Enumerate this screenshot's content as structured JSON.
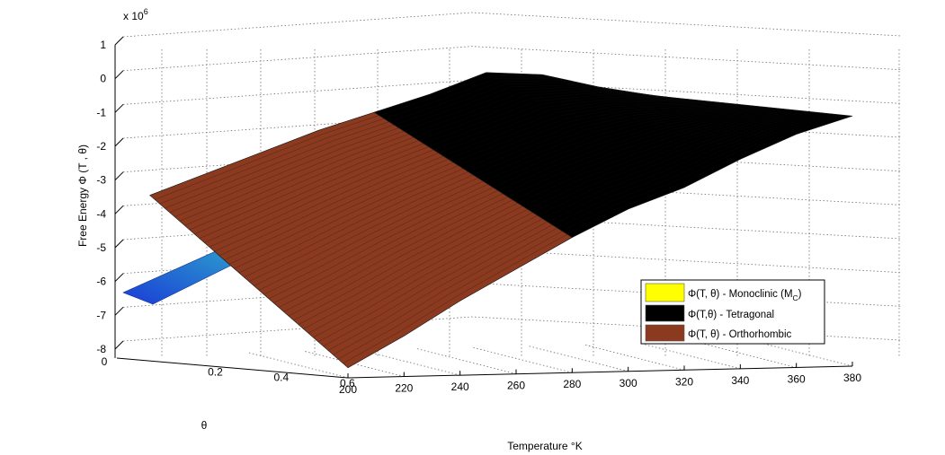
{
  "chart_data": {
    "type": "surface",
    "title": "",
    "zlabel": "Free Energy Φ (T , θ)",
    "xlabel": "Temperature °K",
    "ylabel": "θ",
    "exponent_label": "x 10",
    "exponent_power": "6",
    "z_ticks": [
      "1",
      "0",
      "-1",
      "-2",
      "-3",
      "-4",
      "-5",
      "-6",
      "-7",
      "-8"
    ],
    "z_tick_values": [
      1,
      0,
      -1,
      -2,
      -3,
      -4,
      -5,
      -6,
      -7,
      -8
    ],
    "zlim": [
      -8,
      1
    ],
    "x_ticks": [
      "200",
      "220",
      "240",
      "260",
      "280",
      "300",
      "320",
      "340",
      "360",
      "380"
    ],
    "x_tick_values": [
      200,
      220,
      240,
      260,
      280,
      300,
      320,
      340,
      360,
      380
    ],
    "xlim": [
      195,
      385
    ],
    "y_ticks": [
      "0",
      "0.2",
      "0.4",
      "0.6"
    ],
    "y_tick_values": [
      0,
      0.2,
      0.4,
      0.6
    ],
    "ylim": [
      0,
      0.7
    ],
    "grid": true,
    "legend_position": "lower-right",
    "legend": [
      {
        "label": "Φ(T, θ) - Monoclinic (M",
        "sub": "C",
        "tail": ")",
        "color": "#ffff00"
      },
      {
        "label": "Φ(T,θ) - Tetragonal",
        "sub": "",
        "tail": "",
        "color": "#000000"
      },
      {
        "label": "Φ(T, θ) - Orthorhombic",
        "sub": "",
        "tail": "",
        "color": "#8b3a1f"
      }
    ],
    "series": [
      {
        "name": "Φ(T, θ) - Orthorhombic",
        "color": "#8b3a1f",
        "theta": [
          0.1,
          0.7
        ],
        "T": [
          200,
          220,
          240,
          260,
          280
        ],
        "z_low_theta": [
          -3.1,
          -2.5,
          -1.9,
          -1.3,
          -0.8
        ],
        "z_high_theta": [
          -7.7,
          -6.8,
          -5.8,
          -4.9,
          -4.0
        ]
      },
      {
        "name": "Φ(T,θ) - Tetragonal",
        "color": "#000000",
        "theta": [
          0.1,
          0.7
        ],
        "T": [
          280,
          300,
          320,
          340,
          360,
          380
        ],
        "z_low_theta": [
          -0.8,
          -0.3,
          0.3,
          0.2,
          -0.2,
          -0.5
        ],
        "z_high_theta": [
          -4.0,
          -3.2,
          -2.6,
          -1.8,
          -1.1,
          -0.6
        ]
      },
      {
        "name": "Φ(T, θ) - Monoclinic (MC)",
        "color_range": [
          "#1a3cd6",
          "#37d8c8"
        ],
        "theta": [
          0.0,
          0.3
        ],
        "z_range": [
          -6.3,
          -4.2
        ]
      }
    ]
  }
}
